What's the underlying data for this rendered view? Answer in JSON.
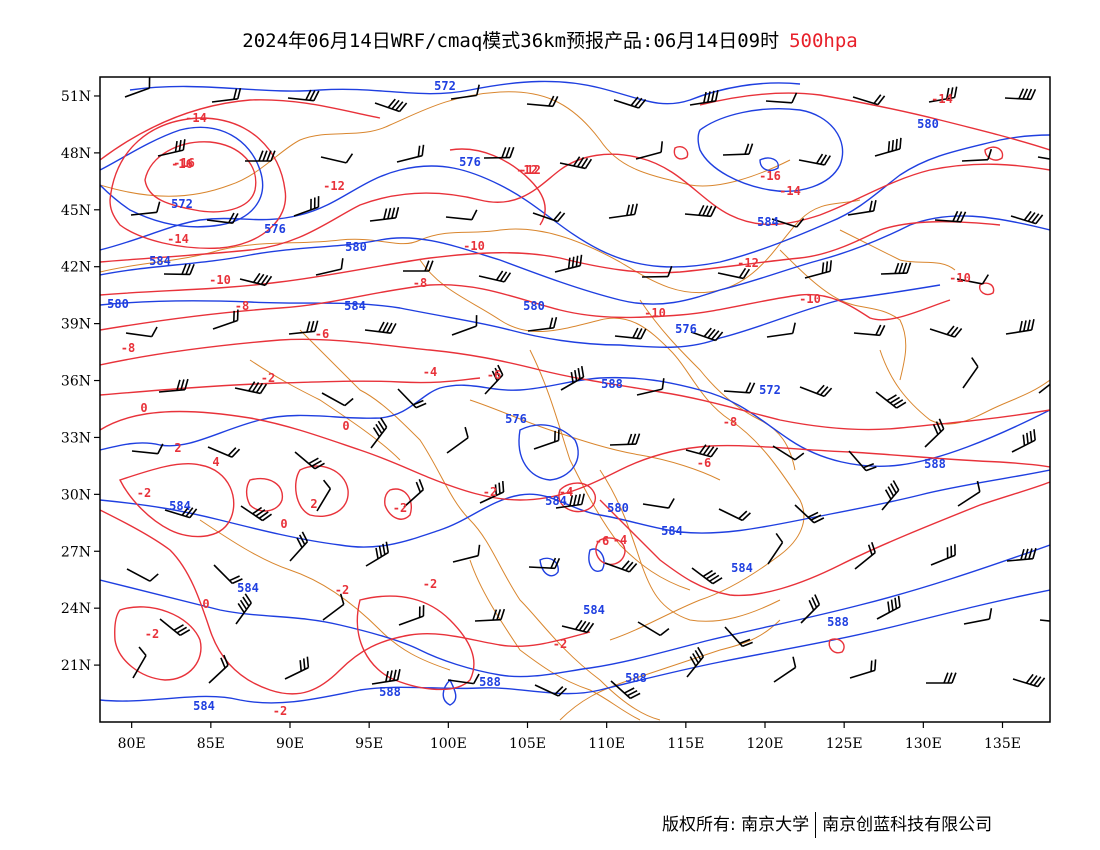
{
  "title": {
    "text": "2024年06月14日WRF/cmaq模式36km预报产品:06月14日09时",
    "level": "500hpa"
  },
  "map": {
    "lon_range": [
      78,
      138
    ],
    "lat_range": [
      18,
      52
    ],
    "x_ticks": [
      "80E",
      "85E",
      "90E",
      "95E",
      "100E",
      "105E",
      "110E",
      "115E",
      "120E",
      "125E",
      "130E",
      "135E"
    ],
    "y_ticks": [
      "51N",
      "48N",
      "45N",
      "42N",
      "39N",
      "36N",
      "33N",
      "30N",
      "27N",
      "24N",
      "21N"
    ],
    "colors": {
      "height": "#1f3fe0",
      "temperature": "#e8323a",
      "border": "#d9862e",
      "wind": "#000000"
    }
  },
  "height_labels": [
    "572",
    "576",
    "576",
    "572",
    "580",
    "580",
    "584",
    "584",
    "580",
    "576",
    "584",
    "588",
    "572",
    "576",
    "584",
    "580",
    "584",
    "584",
    "584",
    "584",
    "584",
    "584",
    "588",
    "588",
    "588",
    "588",
    "588",
    "580"
  ],
  "temp_labels": [
    "-14",
    "-16",
    "-12",
    "-12",
    "-14",
    "-10",
    "-10",
    "-8",
    "-8",
    "-6",
    "-6",
    "-4",
    "-2",
    "0",
    "0",
    "2",
    "4",
    "-2",
    "0",
    "2",
    "-4",
    "-2",
    "-6",
    "-8",
    "-12",
    "-10",
    "-10",
    "-14",
    "-16",
    "-14",
    "-12",
    "-16",
    "-10",
    "-8",
    "-6",
    "-4",
    "-2",
    "-2",
    "-2",
    "0",
    "-2",
    "-2",
    "-2"
  ],
  "copyright": {
    "owner1": "版权所有: 南京大学",
    "owner2": "南京创蓝科技有限公司"
  }
}
